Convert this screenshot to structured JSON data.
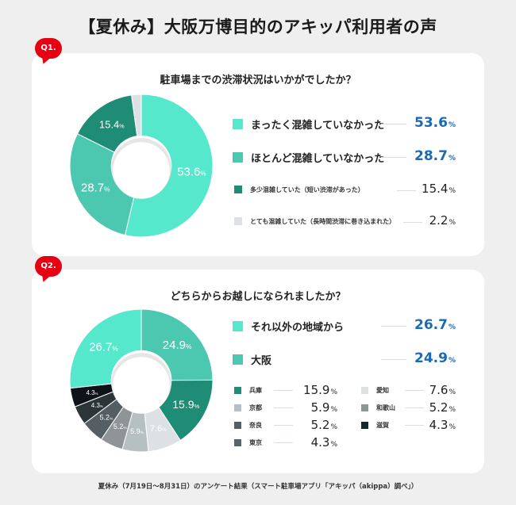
{
  "title": "【夏休み】大阪万博目的のアキッパ利用者の声",
  "footer": "夏休み（7月19日〜8月31日）のアンケート結果（スマート駐車場アプリ「アキッパ（akippa）調べ」）",
  "q1": {
    "badge": "Q1.",
    "question": "駐車場までの渋滞状況はいかがでしたか？",
    "legend": [
      {
        "label": "まったく混雑していなかった",
        "value": "53.6",
        "unit": "%",
        "color": "#55e8cc",
        "emphasis": true
      },
      {
        "label": "ほとんど混雑していなかった",
        "value": "28.7",
        "unit": "%",
        "color": "#4cc7b0",
        "emphasis": true
      },
      {
        "label": "多少混雑していた（短い渋滞があった）",
        "value": "15.4",
        "unit": "%",
        "color": "#1f8c76",
        "emphasis": false
      },
      {
        "label": "とても混雑していた（長時間渋滞に巻き込まれた）",
        "value": "2.2",
        "unit": "%",
        "color": "#dde1e4",
        "emphasis": false
      }
    ]
  },
  "q2": {
    "badge": "Q2.",
    "question": "どちらからお越しになられましたか？",
    "legend_main": [
      {
        "label": "それ以外の地域から",
        "value": "26.7",
        "unit": "%",
        "color": "#55e8cc"
      },
      {
        "label": "大阪",
        "value": "24.9",
        "unit": "%",
        "color": "#4cc7b0"
      }
    ],
    "legend_left": [
      {
        "label": "兵庫",
        "value": "15.9",
        "unit": "%",
        "color": "#1f8c76"
      },
      {
        "label": "京都",
        "value": "5.9",
        "unit": "%",
        "color": "#b6bfc1"
      },
      {
        "label": "奈良",
        "value": "5.2",
        "unit": "%",
        "color": "#555f63"
      },
      {
        "label": "東京",
        "value": "4.3",
        "unit": "%",
        "color": "#5a6468"
      }
    ],
    "legend_right": [
      {
        "label": "愛知",
        "value": "7.6",
        "unit": "%",
        "color": "#dde1e4"
      },
      {
        "label": "和歌山",
        "value": "5.2",
        "unit": "%",
        "color": "#8f9596"
      },
      {
        "label": "滋賀",
        "value": "4.3",
        "unit": "%",
        "color": "#17282c"
      }
    ]
  },
  "chart_data": [
    {
      "type": "pie",
      "title": "駐車場までの渋滞状況はいかがでしたか？",
      "donut": true,
      "categories": [
        "まったく混雑していなかった",
        "ほとんど混雑していなかった",
        "多少混雑していた（短い渋滞があった）",
        "とても混雑していた（長時間渋滞に巻き込まれた）"
      ],
      "values": [
        53.6,
        28.7,
        15.4,
        2.2
      ],
      "colors": [
        "#55e8cc",
        "#4cc7b0",
        "#1f8c76",
        "#dde1e4"
      ],
      "unit": "%",
      "start": "top, clockwise",
      "legend_position": "right"
    },
    {
      "type": "pie",
      "title": "どちらからお越しになられましたか？",
      "donut": true,
      "categories": [
        "大阪",
        "兵庫",
        "愛知",
        "京都",
        "和歌山",
        "奈良",
        "東京",
        "滋賀",
        "それ以外の地域から"
      ],
      "values": [
        24.9,
        15.9,
        7.6,
        5.9,
        5.2,
        5.2,
        4.3,
        4.3,
        26.7
      ],
      "colors": [
        "#4cc7b0",
        "#1f8c76",
        "#dde1e4",
        "#b6bfc1",
        "#8f9596",
        "#555f63",
        "#2b3538",
        "#0d1318",
        "#55e8cc"
      ],
      "unit": "%",
      "start": "top, clockwise",
      "legend_position": "right"
    }
  ]
}
